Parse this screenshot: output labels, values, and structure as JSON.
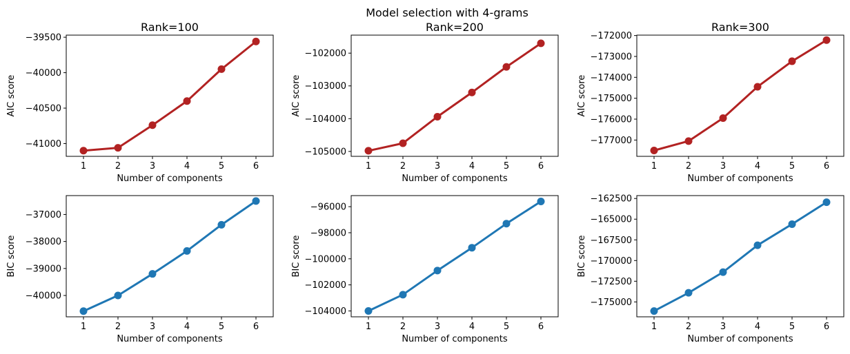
{
  "figure": {
    "suptitle": "Model selection with 4-grams",
    "colors": {
      "aic": "#b22222",
      "bic": "#1f77b4"
    }
  },
  "chart_data": [
    {
      "type": "line",
      "title": "Rank=100",
      "xlabel": "Number of components",
      "ylabel": "AIC score",
      "x": [
        1,
        2,
        3,
        4,
        5,
        6
      ],
      "values": [
        -41100,
        -41060,
        -40740,
        -40400,
        -39950,
        -39560
      ],
      "xlim": [
        0.5,
        6.5
      ],
      "ylim": [
        -41180,
        -39470
      ],
      "yticks": [
        -41000,
        -40500,
        -40000,
        -39500
      ],
      "ytick_labels": [
        "−41000",
        "−40500",
        "−40000",
        "−39500"
      ],
      "color": "#b22222"
    },
    {
      "type": "line",
      "title": "Rank=200",
      "xlabel": "Number of components",
      "ylabel": "AIC score",
      "x": [
        1,
        2,
        3,
        4,
        5,
        6
      ],
      "values": [
        -104980,
        -104750,
        -103940,
        -103200,
        -102420,
        -101700
      ],
      "xlim": [
        0.5,
        6.5
      ],
      "ylim": [
        -105150,
        -101450
      ],
      "yticks": [
        -105000,
        -104000,
        -103000,
        -102000
      ],
      "ytick_labels": [
        "−105000",
        "−104000",
        "−103000",
        "−102000"
      ],
      "color": "#b22222"
    },
    {
      "type": "line",
      "title": "Rank=300",
      "xlabel": "Number of components",
      "ylabel": "AIC score",
      "x": [
        1,
        2,
        3,
        4,
        5,
        6
      ],
      "values": [
        -177500,
        -177050,
        -175950,
        -174450,
        -173230,
        -172220
      ],
      "xlim": [
        0.5,
        6.5
      ],
      "ylim": [
        -177780,
        -171980
      ],
      "yticks": [
        -177000,
        -176000,
        -175000,
        -174000,
        -173000,
        -172000
      ],
      "ytick_labels": [
        "−177000",
        "−176000",
        "−175000",
        "−174000",
        "−173000",
        "−172000"
      ],
      "color": "#b22222"
    },
    {
      "type": "line",
      "title": "",
      "xlabel": "Number of components",
      "ylabel": "BIC score",
      "x": [
        1,
        2,
        3,
        4,
        5,
        6
      ],
      "values": [
        -40580,
        -40000,
        -39200,
        -38350,
        -37380,
        -36500
      ],
      "xlim": [
        0.5,
        6.5
      ],
      "ylim": [
        -40790,
        -36300
      ],
      "yticks": [
        -40000,
        -39000,
        -38000,
        -37000
      ],
      "ytick_labels": [
        "−40000",
        "−39000",
        "−38000",
        "−37000"
      ],
      "color": "#1f77b4"
    },
    {
      "type": "line",
      "title": "",
      "xlabel": "Number of components",
      "ylabel": "BIC score",
      "x": [
        1,
        2,
        3,
        4,
        5,
        6
      ],
      "values": [
        -104000,
        -102750,
        -100900,
        -99150,
        -97300,
        -95600
      ],
      "xlim": [
        0.5,
        6.5
      ],
      "ylim": [
        -104450,
        -95150
      ],
      "yticks": [
        -104000,
        -102000,
        -100000,
        -98000,
        -96000
      ],
      "ytick_labels": [
        "−104000",
        "−102000",
        "−100000",
        "−98000",
        "−96000"
      ],
      "color": "#1f77b4"
    },
    {
      "type": "line",
      "title": "",
      "xlabel": "Number of components",
      "ylabel": "BIC score",
      "x": [
        1,
        2,
        3,
        4,
        5,
        6
      ],
      "values": [
        -176100,
        -173900,
        -171400,
        -168150,
        -165600,
        -162950
      ],
      "xlim": [
        0.5,
        6.5
      ],
      "ylim": [
        -176800,
        -162150
      ],
      "yticks": [
        -175000,
        -172500,
        -170000,
        -167500,
        -165000,
        -162500
      ],
      "ytick_labels": [
        "−175000",
        "−172500",
        "−170000",
        "−167500",
        "−165000",
        "−162500"
      ],
      "color": "#1f77b4"
    }
  ]
}
